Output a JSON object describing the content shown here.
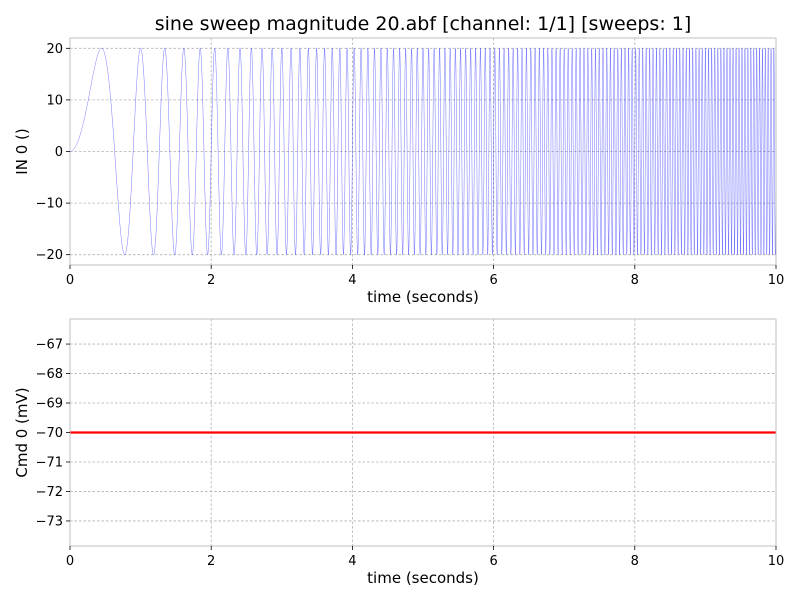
{
  "title": "sine sweep magnitude 20.abf [channel: 1/1] [sweeps: 1]",
  "colors": {
    "signal": "#0000ff",
    "command": "#ff0000",
    "grid": "#b0b0b0",
    "frame": "#bfbfbf"
  },
  "chart_data": [
    {
      "type": "line",
      "xlabel": "time (seconds)",
      "ylabel": "IN 0 ()",
      "xlim": [
        0,
        10
      ],
      "ylim": [
        -22,
        22
      ],
      "xticks": [
        0,
        2,
        4,
        6,
        8,
        10
      ],
      "yticks": [
        -20,
        -10,
        0,
        10,
        20
      ],
      "grid": true,
      "series": [
        {
          "kind": "linear chirp",
          "amplitude": 20,
          "start_frequency_hz": 0,
          "sweep_rate_hz_per_s": 2.5,
          "x_range": [
            0,
            10
          ]
        }
      ]
    },
    {
      "type": "line",
      "xlabel": "time (seconds)",
      "ylabel": "Cmd 0 (mV)",
      "xlim": [
        0,
        10
      ],
      "ylim": [
        -73.85,
        -66.15
      ],
      "xticks": [
        0,
        2,
        4,
        6,
        8,
        10
      ],
      "yticks": [
        -73,
        -72,
        -71,
        -70,
        -69,
        -68,
        -67
      ],
      "grid": true,
      "series": [
        {
          "x": [
            0,
            10
          ],
          "y": [
            -70,
            -70
          ]
        }
      ]
    }
  ]
}
